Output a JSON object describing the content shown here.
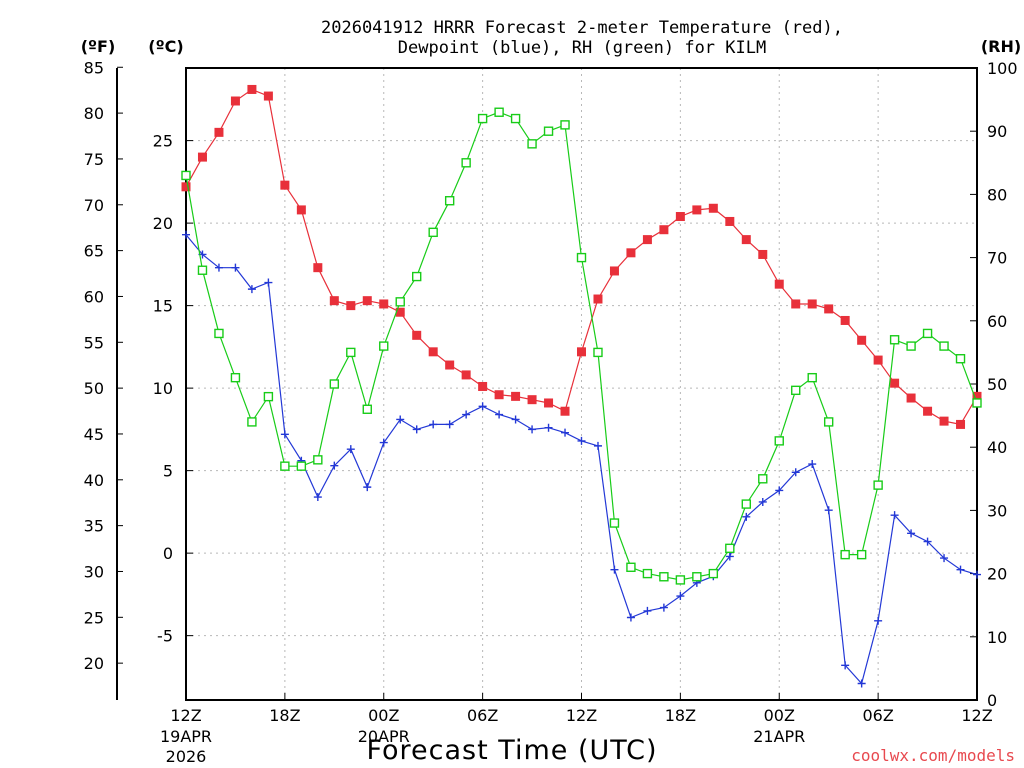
{
  "title_line1": "2026041912 HRRR Forecast 2-meter Temperature (red),",
  "title_line2": "Dewpoint (blue), RH (green) for KILM",
  "unit_f": "(ºF)",
  "unit_c": "(ºC)",
  "unit_rh": "(RH)",
  "xlabel": "Forecast Time (UTC)",
  "credit": "coolwx.com/models",
  "chart_data": {
    "type": "line",
    "title": "2026041912 HRRR Forecast 2-meter Temperature (red), Dewpoint (blue), RH (green) for KILM",
    "xlabel": "Forecast Time (UTC)",
    "x_unit": "forecast hour from 2026-04-19 12Z",
    "xlim": [
      0,
      48
    ],
    "x": [
      0,
      1,
      2,
      3,
      4,
      5,
      6,
      7,
      8,
      9,
      10,
      11,
      12,
      13,
      14,
      15,
      16,
      17,
      18,
      19,
      20,
      21,
      22,
      23,
      24,
      25,
      26,
      27,
      28,
      29,
      30,
      31,
      32,
      33,
      34,
      35,
      36,
      37,
      38,
      39,
      40,
      41,
      42,
      43,
      44,
      45,
      46,
      47,
      48
    ],
    "x_ticks": [
      {
        "x": 0,
        "label": "12Z",
        "date": "19APR",
        "year": "2026"
      },
      {
        "x": 6,
        "label": "18Z"
      },
      {
        "x": 12,
        "label": "00Z",
        "date": "20APR"
      },
      {
        "x": 18,
        "label": "06Z"
      },
      {
        "x": 24,
        "label": "12Z"
      },
      {
        "x": 30,
        "label": "18Z"
      },
      {
        "x": 36,
        "label": "00Z",
        "date": "21APR"
      },
      {
        "x": 42,
        "label": "06Z"
      },
      {
        "x": 48,
        "label": "12Z"
      }
    ],
    "y_left_celsius": {
      "label": "(ºC)",
      "ylim": [
        -8.9,
        29.4
      ],
      "ticks": [
        -5,
        0,
        5,
        10,
        15,
        20,
        25
      ]
    },
    "y_left_fahrenheit": {
      "label": "(ºF)",
      "ticks": [
        20,
        25,
        30,
        35,
        40,
        45,
        50,
        55,
        60,
        65,
        70,
        75,
        80,
        85
      ]
    },
    "y_right_rh": {
      "label": "(RH)",
      "ylim": [
        0,
        100
      ],
      "ticks": [
        0,
        10,
        20,
        30,
        40,
        50,
        60,
        70,
        80,
        90,
        100
      ]
    },
    "grid": true,
    "series": [
      {
        "name": "2-meter Temperature",
        "axis": "celsius",
        "color": "#e8303a",
        "marker": "filled-square",
        "values": [
          22.2,
          24.0,
          25.5,
          27.4,
          28.1,
          27.7,
          22.3,
          20.8,
          17.3,
          15.3,
          15.0,
          15.3,
          15.1,
          14.6,
          13.2,
          12.2,
          11.4,
          10.8,
          10.1,
          9.6,
          9.5,
          9.3,
          9.1,
          8.6,
          12.2,
          15.4,
          17.1,
          18.2,
          19.0,
          19.6,
          20.4,
          20.8,
          20.9,
          20.1,
          19.0,
          18.1,
          16.3,
          15.1,
          15.1,
          14.8,
          14.1,
          12.9,
          11.7,
          10.3,
          9.4,
          8.6,
          8.0,
          7.8,
          9.5
        ]
      },
      {
        "name": "Dewpoint",
        "axis": "celsius",
        "color": "#2338d6",
        "marker": "plus",
        "values": [
          19.3,
          18.1,
          17.3,
          17.3,
          16.0,
          16.4,
          7.2,
          5.6,
          3.4,
          5.3,
          6.3,
          4.0,
          6.7,
          8.1,
          7.5,
          7.8,
          7.8,
          8.4,
          8.9,
          8.4,
          8.1,
          7.5,
          7.6,
          7.3,
          6.8,
          6.5,
          -1.0,
          -3.9,
          -3.5,
          -3.3,
          -2.6,
          -1.8,
          -1.4,
          -0.2,
          2.2,
          3.1,
          3.8,
          4.9,
          5.4,
          2.6,
          -6.8,
          -7.9,
          -4.1,
          2.3,
          1.2,
          0.7,
          -0.3,
          -1.0,
          -1.3
        ]
      },
      {
        "name": "RH",
        "axis": "rh",
        "color": "#18cc18",
        "marker": "open-square",
        "values": [
          83,
          68,
          58,
          51,
          44,
          48,
          37,
          37,
          38,
          50,
          55,
          46,
          56,
          63,
          67,
          74,
          79,
          85,
          92,
          93,
          92,
          88,
          90,
          91,
          70,
          55,
          28,
          21,
          20,
          19.5,
          19,
          19.5,
          20,
          24,
          31,
          35,
          41,
          49,
          51,
          44,
          23,
          23,
          34,
          57,
          56,
          58,
          56,
          54,
          47
        ]
      }
    ]
  }
}
